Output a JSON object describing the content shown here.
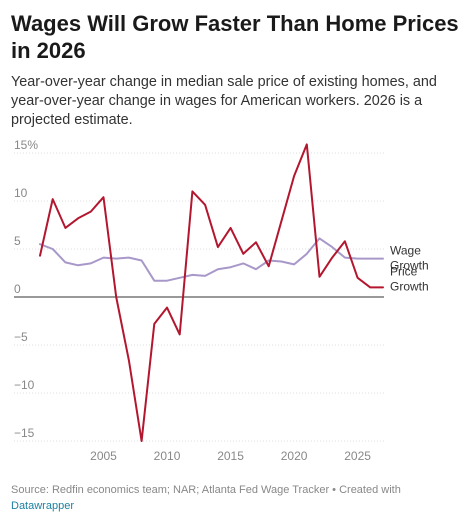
{
  "header": {
    "title": "Wages Will Grow Faster Than Home Prices in 2026",
    "subtitle": "Year-over-year change in median sale price of existing homes, and year-over-year change in wages for American workers. 2026 is a projected estimate."
  },
  "footer": {
    "source": "Source: Redfin economics team; NAR; Atlanta Fed Wage Tracker • Created with ",
    "link": "Datawrapper"
  },
  "colors": {
    "price": "#b3172f",
    "wage": "#a898c9",
    "grid": "#dddddd",
    "zero": "#333333",
    "tick": "#888888"
  },
  "chart_data": {
    "type": "line",
    "ylim": [
      -15,
      16
    ],
    "xlim": [
      2000,
      2027
    ],
    "yticks": [
      15,
      10,
      5,
      0,
      -5,
      -10,
      -15
    ],
    "ytick_labels": [
      "15%",
      "10",
      "5",
      "0",
      "−5",
      "−10",
      "−15"
    ],
    "xticks": [
      2005,
      2010,
      2015,
      2020,
      2025
    ],
    "xtick_labels": [
      "2005",
      "2010",
      "2015",
      "2020",
      "2025"
    ],
    "grid": true,
    "series": [
      {
        "key": "wage",
        "label_lines": [
          "Wage",
          "Growth"
        ],
        "x": [
          2000,
          2001,
          2002,
          2003,
          2004,
          2005,
          2006,
          2007,
          2008,
          2009,
          2010,
          2011,
          2012,
          2013,
          2014,
          2015,
          2016,
          2017,
          2018,
          2019,
          2020,
          2021,
          2022,
          2023,
          2024,
          2025,
          2026,
          2027
        ],
        "values": [
          5.5,
          5.0,
          3.6,
          3.3,
          3.5,
          4.1,
          4.0,
          4.1,
          3.8,
          1.7,
          1.7,
          2.0,
          2.3,
          2.2,
          2.9,
          3.1,
          3.5,
          2.9,
          3.8,
          3.7,
          3.4,
          4.5,
          6.1,
          5.2,
          4.1,
          4.0,
          4.0,
          4.0
        ]
      },
      {
        "key": "price",
        "label_lines": [
          "Price",
          "Growth"
        ],
        "x": [
          2000,
          2001,
          2002,
          2003,
          2004,
          2005,
          2006,
          2007,
          2008,
          2009,
          2010,
          2011,
          2012,
          2013,
          2014,
          2015,
          2016,
          2017,
          2018,
          2019,
          2020,
          2021,
          2022,
          2023,
          2024,
          2025,
          2026,
          2027
        ],
        "values": [
          4.3,
          10.2,
          7.2,
          8.2,
          8.9,
          10.4,
          0.0,
          -6.6,
          -15.0,
          -2.8,
          -1.1,
          -3.9,
          11.0,
          9.6,
          5.2,
          7.2,
          4.5,
          5.7,
          3.2,
          7.9,
          12.6,
          15.9,
          2.1,
          4.1,
          5.8,
          2.0,
          1.0,
          1.0
        ]
      }
    ]
  }
}
